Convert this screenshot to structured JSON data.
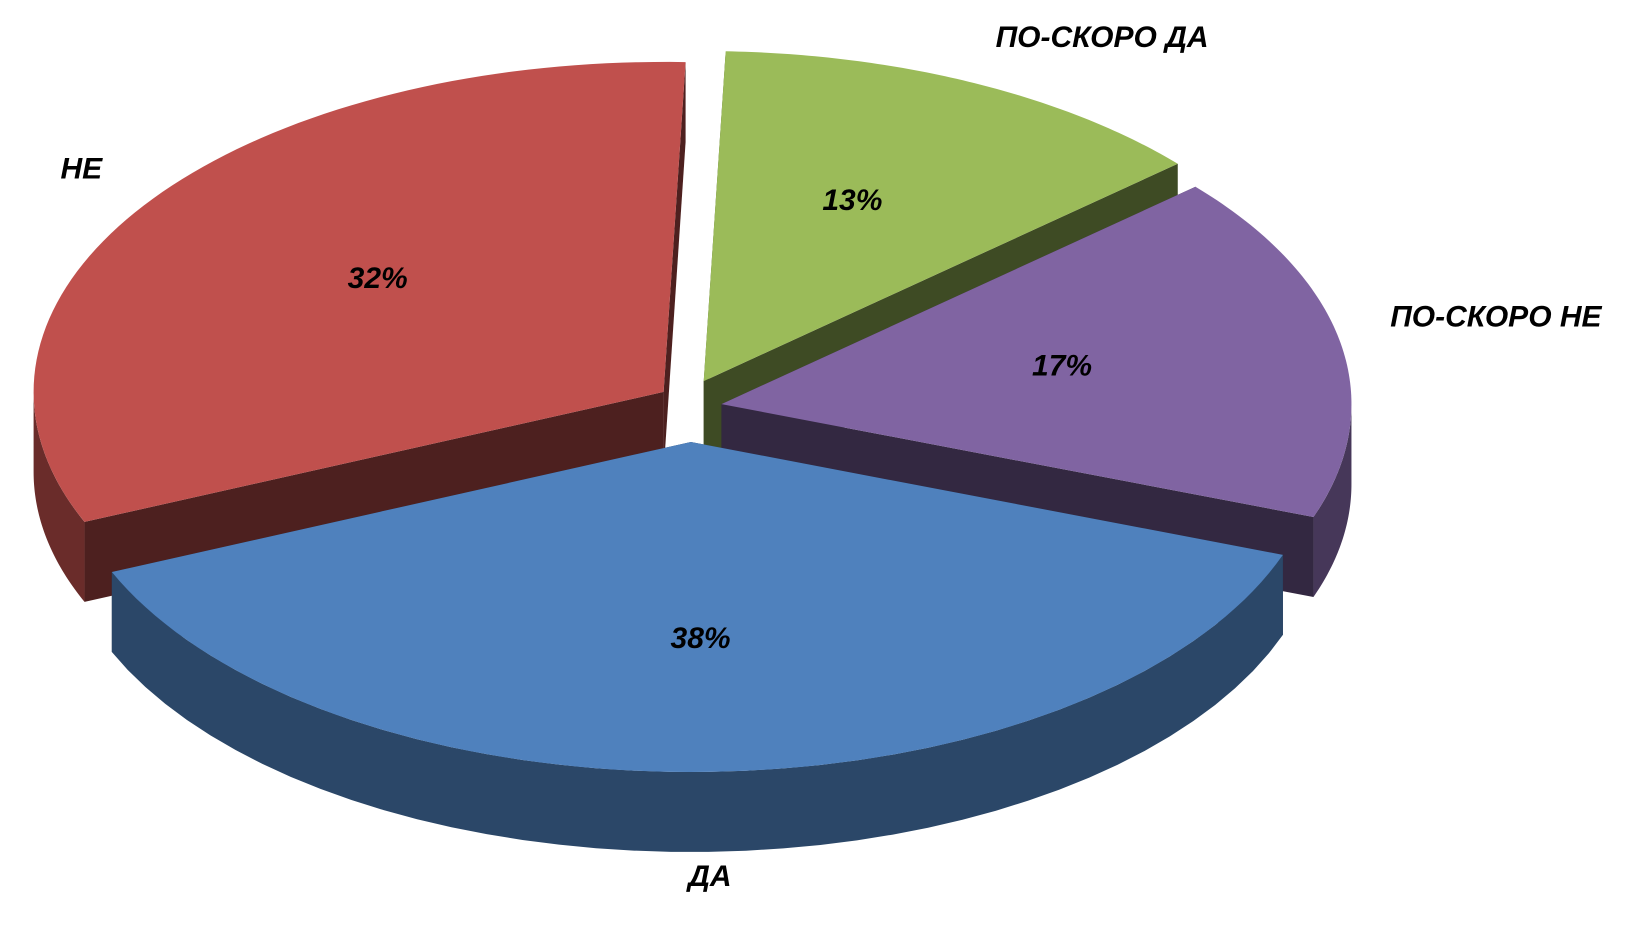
{
  "chart_data": {
    "type": "pie3d",
    "categories": [
      "ДА",
      "НЕ",
      "ПО-СКОРО ДА",
      "ПО-СКОРО НЕ"
    ],
    "values": [
      38,
      32,
      13,
      17
    ],
    "value_labels": [
      "38%",
      "32%",
      "13%",
      "17%"
    ],
    "colors": [
      "#4f81bd",
      "#c0504d",
      "#9bbb59",
      "#8064a2"
    ]
  }
}
